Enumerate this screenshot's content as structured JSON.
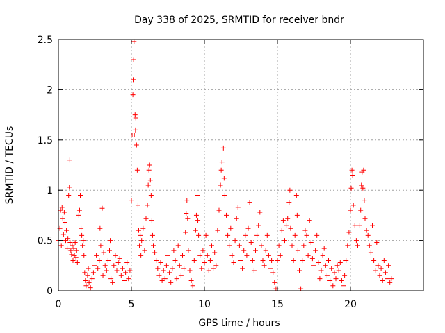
{
  "chart_data": {
    "type": "scatter",
    "title": "Day 338 of 2025, SRMTID for receiver bndr",
    "xlabel": "GPS time / hours",
    "ylabel": "SRMTID / TECUs",
    "xlim": [
      0,
      25
    ],
    "ylim": [
      0,
      2.5
    ],
    "xticks": [
      0,
      5,
      10,
      15,
      20
    ],
    "xtick_labels": [
      "0",
      "5",
      "10",
      "15",
      "20"
    ],
    "yticks": [
      0,
      0.5,
      1,
      1.5,
      2,
      2.5
    ],
    "ytick_labels": [
      "0",
      "0.5",
      "1",
      "1.5",
      "2",
      "2.5"
    ],
    "grid": true,
    "marker": "+",
    "marker_color": "#ff0000",
    "series": [
      {
        "name": "SRMTID",
        "points": [
          [
            0.0,
            0.5
          ],
          [
            0.1,
            0.62
          ],
          [
            0.15,
            0.8
          ],
          [
            0.2,
            0.45
          ],
          [
            0.25,
            0.83
          ],
          [
            0.3,
            0.72
          ],
          [
            0.35,
            0.56
          ],
          [
            0.4,
            0.78
          ],
          [
            0.45,
            0.68
          ],
          [
            0.5,
            0.5
          ],
          [
            0.55,
            0.6
          ],
          [
            0.6,
            0.42
          ],
          [
            0.65,
            0.52
          ],
          [
            0.7,
            0.95
          ],
          [
            0.75,
            1.03
          ],
          [
            0.78,
            1.3
          ],
          [
            0.8,
            0.48
          ],
          [
            0.85,
            0.4
          ],
          [
            0.9,
            0.36
          ],
          [
            0.95,
            0.45
          ],
          [
            1.0,
            0.3
          ],
          [
            1.05,
            0.42
          ],
          [
            1.1,
            0.35
          ],
          [
            1.15,
            0.48
          ],
          [
            1.2,
            0.33
          ],
          [
            1.25,
            0.4
          ],
          [
            1.3,
            0.28
          ],
          [
            1.4,
            0.75
          ],
          [
            1.45,
            0.8
          ],
          [
            1.5,
            0.95
          ],
          [
            1.55,
            0.62
          ],
          [
            1.6,
            0.55
          ],
          [
            1.65,
            0.45
          ],
          [
            1.7,
            0.5
          ],
          [
            1.75,
            0.35
          ],
          [
            1.8,
            0.18
          ],
          [
            1.85,
            0.1
          ],
          [
            1.9,
            0.05
          ],
          [
            2.0,
            0.15
          ],
          [
            2.05,
            0.22
          ],
          [
            2.1,
            0.08
          ],
          [
            2.2,
            0.03
          ],
          [
            2.3,
            0.12
          ],
          [
            2.4,
            0.18
          ],
          [
            2.5,
            0.25
          ],
          [
            2.6,
            0.35
          ],
          [
            2.7,
            0.22
          ],
          [
            2.8,
            0.3
          ],
          [
            2.85,
            0.62
          ],
          [
            2.9,
            0.45
          ],
          [
            3.0,
            0.82
          ],
          [
            3.05,
            0.15
          ],
          [
            3.1,
            0.38
          ],
          [
            3.2,
            0.25
          ],
          [
            3.3,
            0.2
          ],
          [
            3.4,
            0.3
          ],
          [
            3.5,
            0.4
          ],
          [
            3.55,
            0.5
          ],
          [
            3.6,
            0.12
          ],
          [
            3.7,
            0.08
          ],
          [
            3.8,
            0.25
          ],
          [
            3.9,
            0.35
          ],
          [
            4.0,
            0.2
          ],
          [
            4.1,
            0.28
          ],
          [
            4.2,
            0.32
          ],
          [
            4.3,
            0.15
          ],
          [
            4.4,
            0.22
          ],
          [
            4.5,
            0.1
          ],
          [
            4.6,
            0.18
          ],
          [
            4.7,
            0.28
          ],
          [
            4.8,
            0.12
          ],
          [
            4.9,
            0.2
          ],
          [
            5.0,
            0.9
          ],
          [
            5.05,
            1.55
          ],
          [
            5.1,
            1.95
          ],
          [
            5.12,
            2.1
          ],
          [
            5.15,
            2.3
          ],
          [
            5.18,
            2.48
          ],
          [
            5.2,
            1.55
          ],
          [
            5.25,
            1.75
          ],
          [
            5.28,
            1.6
          ],
          [
            5.3,
            1.72
          ],
          [
            5.35,
            1.45
          ],
          [
            5.4,
            1.2
          ],
          [
            5.45,
            0.85
          ],
          [
            5.5,
            0.6
          ],
          [
            5.55,
            0.45
          ],
          [
            5.6,
            0.55
          ],
          [
            5.65,
            0.35
          ],
          [
            5.7,
            0.5
          ],
          [
            5.8,
            0.62
          ],
          [
            5.9,
            0.4
          ],
          [
            6.0,
            0.72
          ],
          [
            6.1,
            0.85
          ],
          [
            6.15,
            1.05
          ],
          [
            6.2,
            1.2
          ],
          [
            6.25,
            1.25
          ],
          [
            6.3,
            1.1
          ],
          [
            6.35,
            0.95
          ],
          [
            6.4,
            0.7
          ],
          [
            6.45,
            0.55
          ],
          [
            6.5,
            0.45
          ],
          [
            6.6,
            0.38
          ],
          [
            6.7,
            0.3
          ],
          [
            6.8,
            0.22
          ],
          [
            6.9,
            0.15
          ],
          [
            7.0,
            0.28
          ],
          [
            7.1,
            0.1
          ],
          [
            7.2,
            0.2
          ],
          [
            7.3,
            0.12
          ],
          [
            7.4,
            0.25
          ],
          [
            7.5,
            0.35
          ],
          [
            7.6,
            0.18
          ],
          [
            7.7,
            0.08
          ],
          [
            7.8,
            0.22
          ],
          [
            7.9,
            0.4
          ],
          [
            8.0,
            0.3
          ],
          [
            8.1,
            0.12
          ],
          [
            8.2,
            0.45
          ],
          [
            8.3,
            0.25
          ],
          [
            8.4,
            0.15
          ],
          [
            8.5,
            0.35
          ],
          [
            8.6,
            0.22
          ],
          [
            8.7,
            0.58
          ],
          [
            8.75,
            0.77
          ],
          [
            8.8,
            0.9
          ],
          [
            8.85,
            0.72
          ],
          [
            8.9,
            0.4
          ],
          [
            9.0,
            0.2
          ],
          [
            9.1,
            0.1
          ],
          [
            9.2,
            0.05
          ],
          [
            9.3,
            0.3
          ],
          [
            9.4,
            0.6
          ],
          [
            9.45,
            0.75
          ],
          [
            9.5,
            0.95
          ],
          [
            9.55,
            0.7
          ],
          [
            9.6,
            0.55
          ],
          [
            9.7,
            0.35
          ],
          [
            9.8,
            0.22
          ],
          [
            9.9,
            0.4
          ],
          [
            10.0,
            0.28
          ],
          [
            10.1,
            0.55
          ],
          [
            10.2,
            0.35
          ],
          [
            10.3,
            0.2
          ],
          [
            10.4,
            0.3
          ],
          [
            10.5,
            0.45
          ],
          [
            10.6,
            0.22
          ],
          [
            10.7,
            0.38
          ],
          [
            10.8,
            0.25
          ],
          [
            10.9,
            0.6
          ],
          [
            11.0,
            0.8
          ],
          [
            11.1,
            1.05
          ],
          [
            11.15,
            1.2
          ],
          [
            11.2,
            1.28
          ],
          [
            11.3,
            1.42
          ],
          [
            11.35,
            1.12
          ],
          [
            11.4,
            0.95
          ],
          [
            11.5,
            0.75
          ],
          [
            11.6,
            0.55
          ],
          [
            11.7,
            0.45
          ],
          [
            11.8,
            0.62
          ],
          [
            11.9,
            0.35
          ],
          [
            12.0,
            0.28
          ],
          [
            12.1,
            0.5
          ],
          [
            12.2,
            0.72
          ],
          [
            12.3,
            0.83
          ],
          [
            12.4,
            0.45
          ],
          [
            12.5,
            0.3
          ],
          [
            12.6,
            0.22
          ],
          [
            12.7,
            0.4
          ],
          [
            12.8,
            0.55
          ],
          [
            12.9,
            0.35
          ],
          [
            13.0,
            0.62
          ],
          [
            13.1,
            0.88
          ],
          [
            13.2,
            0.48
          ],
          [
            13.3,
            0.3
          ],
          [
            13.4,
            0.2
          ],
          [
            13.5,
            0.4
          ],
          [
            13.6,
            0.55
          ],
          [
            13.7,
            0.65
          ],
          [
            13.8,
            0.78
          ],
          [
            13.9,
            0.45
          ],
          [
            14.0,
            0.3
          ],
          [
            14.1,
            0.25
          ],
          [
            14.2,
            0.4
          ],
          [
            14.3,
            0.55
          ],
          [
            14.4,
            0.35
          ],
          [
            14.5,
            0.22
          ],
          [
            14.6,
            0.3
          ],
          [
            14.7,
            0.18
          ],
          [
            14.8,
            0.08
          ],
          [
            14.9,
            0.02
          ],
          [
            15.0,
            0.3
          ],
          [
            15.1,
            0.45
          ],
          [
            15.2,
            0.35
          ],
          [
            15.3,
            0.6
          ],
          [
            15.4,
            0.7
          ],
          [
            15.5,
            0.5
          ],
          [
            15.6,
            0.65
          ],
          [
            15.7,
            0.72
          ],
          [
            15.8,
            0.88
          ],
          [
            15.85,
            1.0
          ],
          [
            15.9,
            0.62
          ],
          [
            16.0,
            0.45
          ],
          [
            16.1,
            0.3
          ],
          [
            16.2,
            0.55
          ],
          [
            16.3,
            0.95
          ],
          [
            16.35,
            0.75
          ],
          [
            16.4,
            0.4
          ],
          [
            16.5,
            0.2
          ],
          [
            16.6,
            0.02
          ],
          [
            16.7,
            0.3
          ],
          [
            16.8,
            0.45
          ],
          [
            16.9,
            0.6
          ],
          [
            17.0,
            0.55
          ],
          [
            17.1,
            0.35
          ],
          [
            17.2,
            0.7
          ],
          [
            17.3,
            0.48
          ],
          [
            17.4,
            0.32
          ],
          [
            17.5,
            0.25
          ],
          [
            17.6,
            0.4
          ],
          [
            17.7,
            0.55
          ],
          [
            17.8,
            0.28
          ],
          [
            17.9,
            0.12
          ],
          [
            18.0,
            0.2
          ],
          [
            18.1,
            0.35
          ],
          [
            18.2,
            0.42
          ],
          [
            18.3,
            0.25
          ],
          [
            18.4,
            0.15
          ],
          [
            18.5,
            0.3
          ],
          [
            18.6,
            0.1
          ],
          [
            18.7,
            0.22
          ],
          [
            18.8,
            0.05
          ],
          [
            18.9,
            0.18
          ],
          [
            19.0,
            0.12
          ],
          [
            19.1,
            0.25
          ],
          [
            19.2,
            0.2
          ],
          [
            19.3,
            0.28
          ],
          [
            19.4,
            0.1
          ],
          [
            19.5,
            0.05
          ],
          [
            19.6,
            0.15
          ],
          [
            19.7,
            0.3
          ],
          [
            19.8,
            0.45
          ],
          [
            19.9,
            0.58
          ],
          [
            20.0,
            0.8
          ],
          [
            20.05,
            1.02
          ],
          [
            20.1,
            1.2
          ],
          [
            20.15,
            1.15
          ],
          [
            20.2,
            0.85
          ],
          [
            20.3,
            0.65
          ],
          [
            20.4,
            0.5
          ],
          [
            20.5,
            0.45
          ],
          [
            20.6,
            0.65
          ],
          [
            20.7,
            0.8
          ],
          [
            20.75,
            1.05
          ],
          [
            20.8,
            1.18
          ],
          [
            20.85,
            1.02
          ],
          [
            20.9,
            1.2
          ],
          [
            20.95,
            0.9
          ],
          [
            21.0,
            0.72
          ],
          [
            21.1,
            0.6
          ],
          [
            21.2,
            0.55
          ],
          [
            21.3,
            0.45
          ],
          [
            21.4,
            0.38
          ],
          [
            21.5,
            0.65
          ],
          [
            21.6,
            0.3
          ],
          [
            21.7,
            0.2
          ],
          [
            21.8,
            0.48
          ],
          [
            21.9,
            0.25
          ],
          [
            22.0,
            0.15
          ],
          [
            22.1,
            0.22
          ],
          [
            22.2,
            0.1
          ],
          [
            22.3,
            0.3
          ],
          [
            22.4,
            0.18
          ],
          [
            22.5,
            0.12
          ],
          [
            22.6,
            0.25
          ],
          [
            22.7,
            0.08
          ],
          [
            22.8,
            0.12
          ]
        ]
      }
    ]
  }
}
